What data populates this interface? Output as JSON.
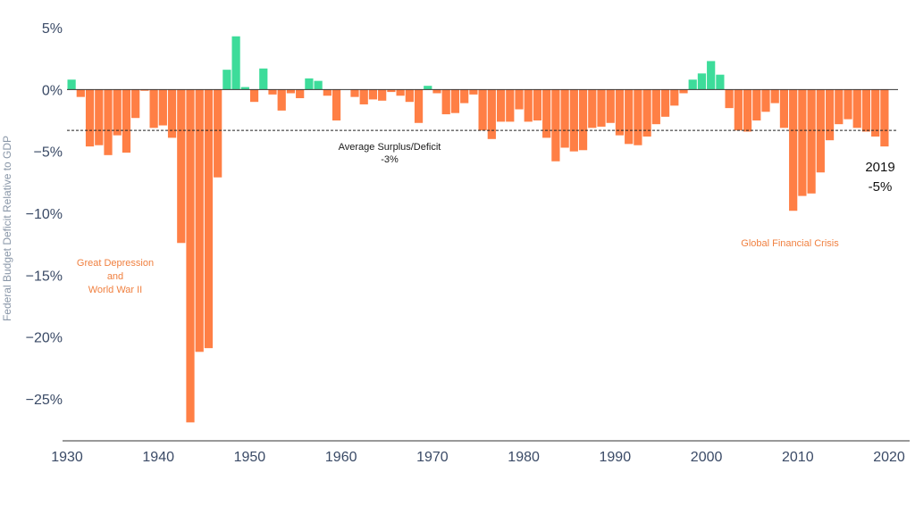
{
  "chart_data": {
    "type": "bar",
    "xlabel": "",
    "ylabel": "Federal Budget Deficit Relative to GDP",
    "ylim": [
      -28,
      6
    ],
    "xlim": [
      1930,
      2020
    ],
    "x_ticks": [
      1930,
      1940,
      1950,
      1960,
      1970,
      1980,
      1990,
      2000,
      2010,
      2020
    ],
    "y_ticks": [
      5,
      0,
      -5,
      -10,
      -15,
      -20,
      -25
    ],
    "y_tick_labels": [
      "5%",
      "0%",
      "−5%",
      "−10%",
      "−15%",
      "−20%",
      "−25%"
    ],
    "x": [
      1930,
      1931,
      1932,
      1933,
      1934,
      1935,
      1936,
      1937,
      1938,
      1939,
      1940,
      1941,
      1942,
      1943,
      1944,
      1945,
      1946,
      1947,
      1948,
      1949,
      1950,
      1951,
      1952,
      1953,
      1954,
      1955,
      1956,
      1957,
      1958,
      1959,
      1960,
      1961,
      1962,
      1963,
      1964,
      1965,
      1966,
      1967,
      1968,
      1969,
      1970,
      1971,
      1972,
      1973,
      1974,
      1975,
      1976,
      1977,
      1978,
      1979,
      1980,
      1981,
      1982,
      1983,
      1984,
      1985,
      1986,
      1987,
      1988,
      1989,
      1990,
      1991,
      1992,
      1993,
      1994,
      1995,
      1996,
      1997,
      1998,
      1999,
      2000,
      2001,
      2002,
      2003,
      2004,
      2005,
      2006,
      2007,
      2008,
      2009,
      2010,
      2011,
      2012,
      2013,
      2014,
      2015,
      2016,
      2017,
      2018,
      2019
    ],
    "values": [
      0.8,
      -0.6,
      -4.6,
      -4.5,
      -5.3,
      -3.7,
      -5.1,
      -2.3,
      -0.1,
      -3.1,
      -2.9,
      -3.9,
      -12.4,
      -26.9,
      -21.2,
      -20.9,
      -7.1,
      1.6,
      4.3,
      0.2,
      -1.0,
      1.7,
      -0.4,
      -1.7,
      -0.3,
      -0.7,
      0.9,
      0.7,
      -0.5,
      -2.5,
      0.0,
      -0.6,
      -1.2,
      -0.8,
      -0.9,
      -0.2,
      -0.5,
      -1.0,
      -2.7,
      0.3,
      -0.3,
      -2.0,
      -1.9,
      -1.1,
      -0.4,
      -3.3,
      -4.0,
      -2.6,
      -2.6,
      -1.6,
      -2.6,
      -2.5,
      -3.9,
      -5.8,
      -4.7,
      -5.0,
      -4.9,
      -3.1,
      -3.0,
      -2.7,
      -3.7,
      -4.4,
      -4.5,
      -3.8,
      -2.8,
      -2.2,
      -1.3,
      -0.3,
      0.8,
      1.3,
      2.3,
      1.2,
      -1.5,
      -3.3,
      -3.4,
      -2.5,
      -1.8,
      -1.1,
      -3.1,
      -9.8,
      -8.6,
      -8.4,
      -6.7,
      -4.1,
      -2.8,
      -2.4,
      -3.1,
      -3.4,
      -3.8,
      -4.6
    ],
    "average": -3.3,
    "colors": {
      "surplus": "#3ddc9a",
      "deficit": "#ff7f45",
      "axis": "#333333",
      "tick_text": "#3a4a66"
    },
    "annotations": {
      "average_line1": "Average Surplus/Deficit",
      "average_line2": "-3%",
      "ww2_line1": "Great Depression",
      "ww2_line2": "and",
      "ww2_line3": "World War II",
      "gfc": "Global Financial Crisis",
      "latest_year": "2019",
      "latest_value": "-5%"
    },
    "grid": false
  }
}
